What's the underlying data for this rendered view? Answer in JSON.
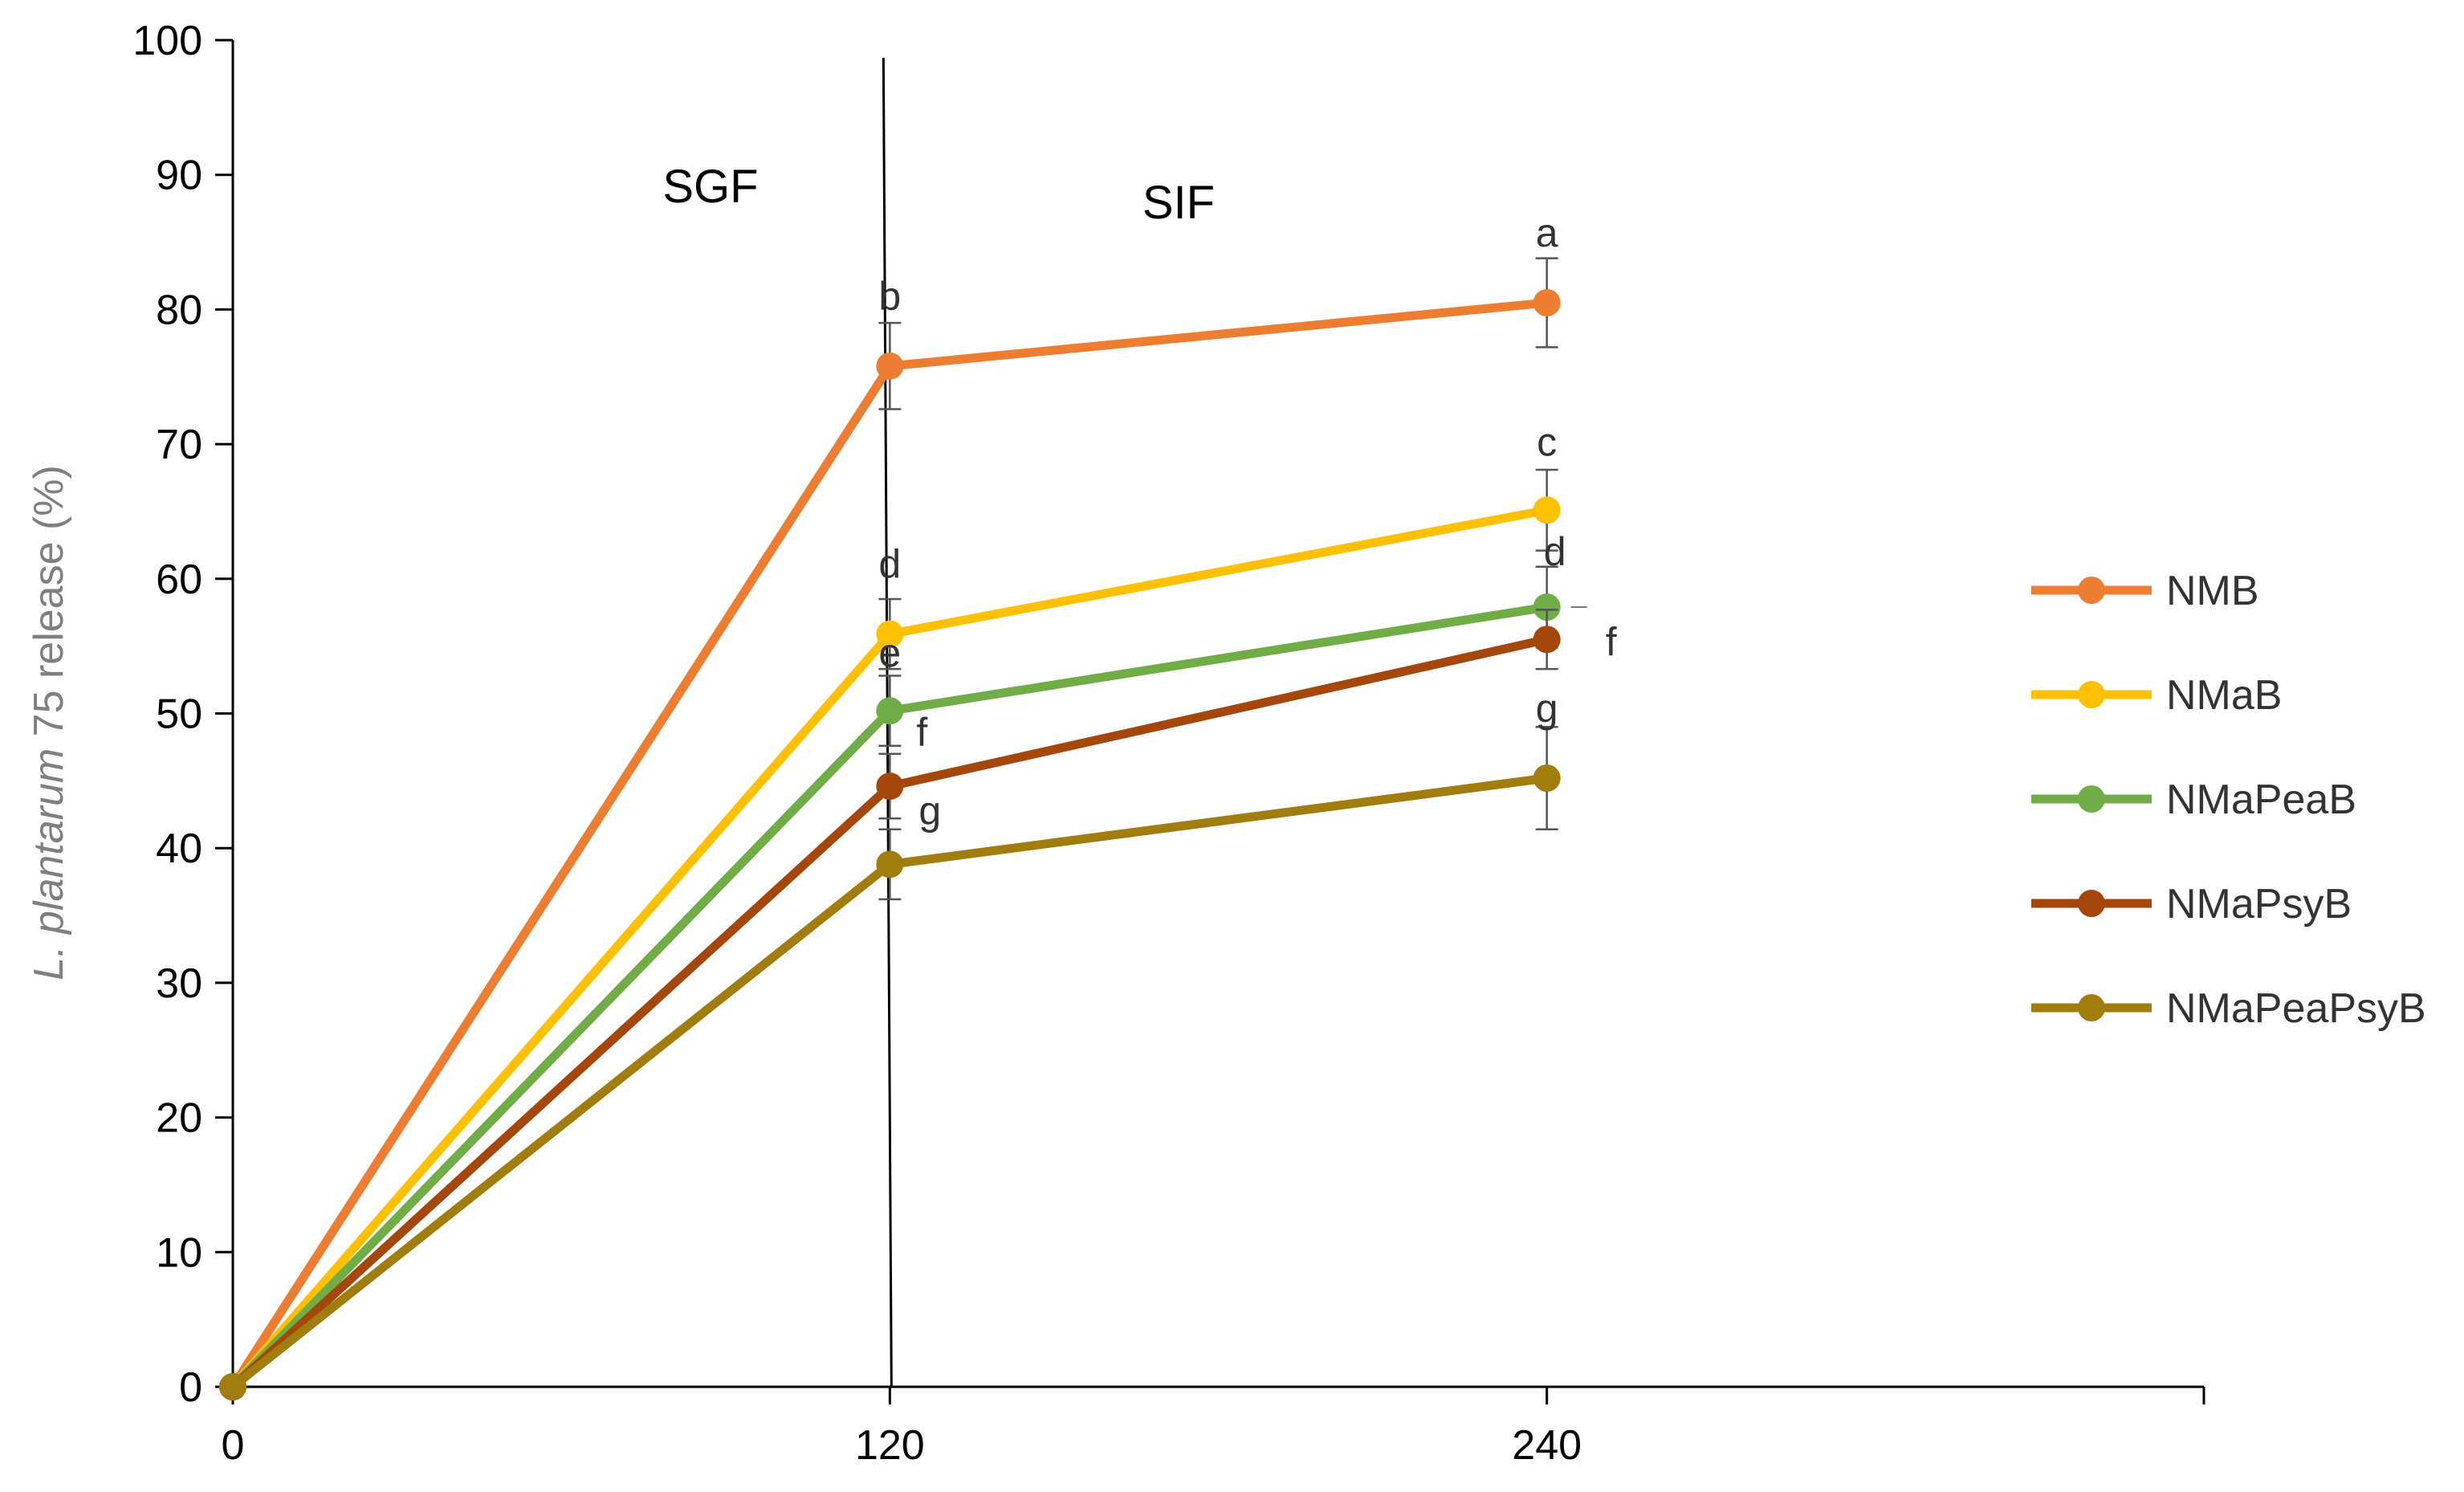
{
  "chart_data": {
    "type": "line",
    "title": "",
    "xlabel": "",
    "ylabel_italic": "L. plantarum",
    "ylabel_rest": " 75  release (%)",
    "x": [
      0,
      120,
      240
    ],
    "x_ticks": [
      "0",
      "120",
      "240"
    ],
    "xlim": [
      0,
      360
    ],
    "ylim": [
      0,
      100
    ],
    "y_ticks": [
      "0",
      "10",
      "20",
      "30",
      "40",
      "50",
      "60",
      "70",
      "80",
      "90",
      "100"
    ],
    "grid": false,
    "legend_position": "right",
    "regions": [
      {
        "label": "SGF"
      },
      {
        "label": "SIF"
      }
    ],
    "divider_x": 120,
    "series": [
      {
        "name": "NMB",
        "color": "#ED7D31",
        "values": [
          0,
          75.8,
          80.5
        ],
        "errors": [
          0,
          3.2,
          3.3
        ],
        "letters": [
          "",
          "b",
          "a"
        ]
      },
      {
        "name": "NMaB",
        "color": "#FFC000",
        "values": [
          0,
          55.9,
          65.1
        ],
        "errors": [
          0,
          2.6,
          3.0
        ],
        "letters": [
          "",
          "d",
          "c"
        ]
      },
      {
        "name": "NMaPeaB",
        "color": "#70AD47",
        "values": [
          0,
          50.2,
          57.9
        ],
        "errors": [
          0,
          2.6,
          3.0
        ],
        "letters": [
          "",
          "e",
          "d"
        ]
      },
      {
        "name": "NMaPsyB",
        "color": "#A5460A",
        "values": [
          0,
          44.6,
          55.5
        ],
        "errors": [
          0,
          2.4,
          2.2
        ],
        "letters": [
          "",
          "f",
          "f"
        ]
      },
      {
        "name": "NMaPeaPsyB",
        "color": "#A07D0C",
        "values": [
          0,
          38.8,
          45.2
        ],
        "errors": [
          0,
          2.6,
          3.8
        ],
        "letters": [
          "",
          "g",
          "g"
        ]
      }
    ]
  }
}
